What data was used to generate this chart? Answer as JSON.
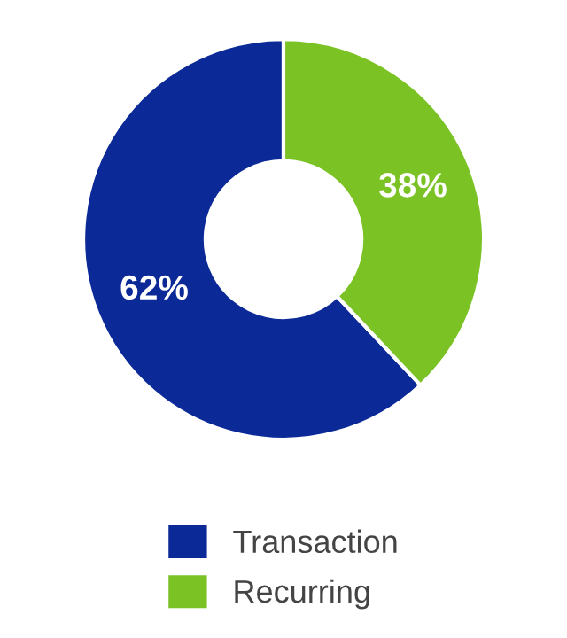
{
  "chart_data": {
    "type": "donut",
    "categories": [
      "Transaction",
      "Recurring"
    ],
    "values": [
      62,
      38
    ],
    "colors": [
      "#0b2a97",
      "#7bc225"
    ],
    "value_labels": [
      "62%",
      "38%"
    ],
    "legend": "bottom"
  }
}
